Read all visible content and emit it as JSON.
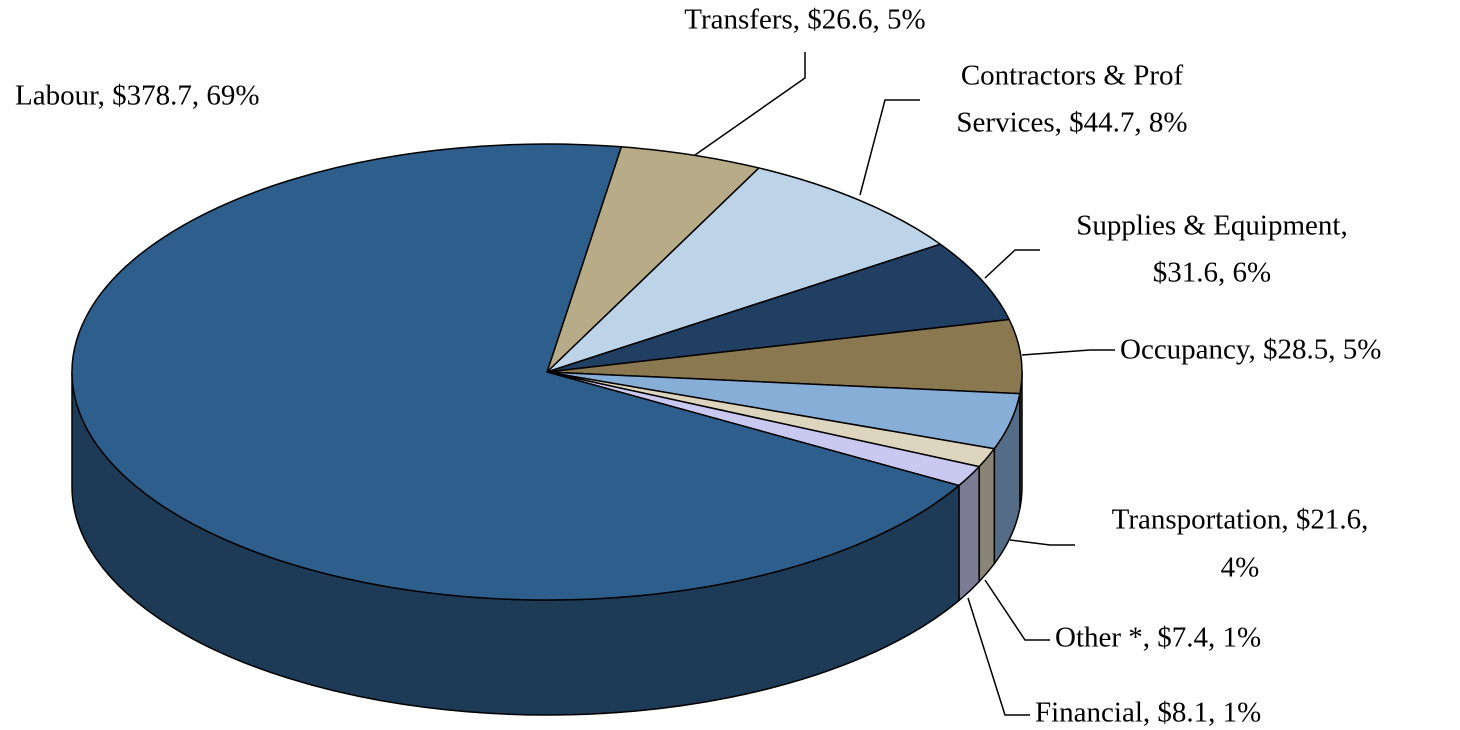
{
  "chart_data": {
    "type": "pie",
    "labels": [
      [
        "Transfers, $26.6, 5%"
      ],
      [
        "Contractors & Prof",
        "Services, $44.7, 8%"
      ],
      [
        "Supplies & Equipment,",
        "$31.6, 6%"
      ],
      [
        "Occupancy, $28.5, 5%"
      ],
      [
        "Transportation, $21.6,",
        "4%"
      ],
      [
        "Other *, $7.4, 1%"
      ],
      [
        "Financial, $8.1, 1%"
      ],
      [
        "Labour, $378.7, 69%"
      ]
    ],
    "values": [
      26.6,
      44.7,
      31.6,
      28.5,
      21.6,
      7.4,
      8.1,
      378.7
    ],
    "colors": [
      "#b8ab87",
      "#bcd3e8",
      "#213f63",
      "#8a7850",
      "#87aed6",
      "#ddd5bd",
      "#c8c8f0",
      "#2e5e8b"
    ]
  }
}
